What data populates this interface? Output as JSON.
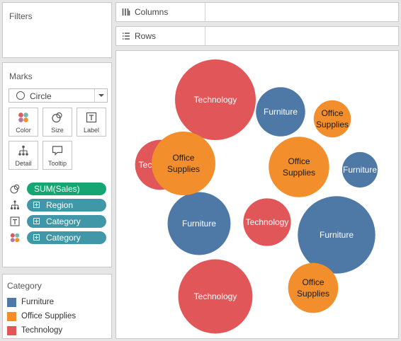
{
  "filters": {
    "title": "Filters"
  },
  "marks": {
    "title": "Marks",
    "mark_type": "Circle",
    "cards": [
      {
        "label": "Color",
        "icon": "color-dots-icon"
      },
      {
        "label": "Size",
        "icon": "size-circles-icon"
      },
      {
        "label": "Label",
        "icon": "text-label-icon"
      },
      {
        "label": "Detail",
        "icon": "detail-hierarchy-icon"
      },
      {
        "label": "Tooltip",
        "icon": "tooltip-speech-icon"
      }
    ],
    "pills": [
      {
        "field": "SUM(Sales)",
        "encoding": "size",
        "type": "measure"
      },
      {
        "field": "Region",
        "encoding": "detail",
        "type": "dimension"
      },
      {
        "field": "Category",
        "encoding": "label",
        "type": "dimension"
      },
      {
        "field": "Category",
        "encoding": "color",
        "type": "dimension"
      }
    ]
  },
  "shelves": {
    "columns": "Columns",
    "rows": "Rows"
  },
  "legend": {
    "title": "Category",
    "items": [
      {
        "label": "Furniture",
        "color": "#4e79a7"
      },
      {
        "label": "Office Supplies",
        "color": "#f28e2b"
      },
      {
        "label": "Technology",
        "color": "#e15759"
      }
    ]
  },
  "chart_data": {
    "type": "packed-bubble",
    "size_measure": "SUM(Sales)",
    "color_dimension": "Category",
    "detail_dimension": "Region",
    "label_dimension": "Category",
    "colors": {
      "Furniture": "#4e79a7",
      "Office Supplies": "#f28e2b",
      "Technology": "#e15759"
    },
    "bubbles": [
      {
        "label": "Technology",
        "category": "Technology",
        "relative_size": 1.0
      },
      {
        "label": "Technology",
        "category": "Technology",
        "relative_size": 0.92
      },
      {
        "label": "Furniture",
        "category": "Furniture",
        "relative_size": 0.96
      },
      {
        "label": "Technology",
        "category": "Technology",
        "relative_size": 0.62
      },
      {
        "label": "Furniture",
        "category": "Furniture",
        "relative_size": 0.78
      },
      {
        "label": "Office Supplies",
        "category": "Office Supplies",
        "relative_size": 0.79
      },
      {
        "label": "Office Supplies",
        "category": "Office Supplies",
        "relative_size": 0.75
      },
      {
        "label": "Technology",
        "category": "Technology",
        "relative_size": 0.59
      },
      {
        "label": "Furniture",
        "category": "Furniture",
        "relative_size": 0.61
      },
      {
        "label": "Office Supplies",
        "category": "Office Supplies",
        "relative_size": 0.62
      },
      {
        "label": "Furniture",
        "category": "Furniture",
        "relative_size": 0.44
      },
      {
        "label": "Office Supplies",
        "category": "Office Supplies",
        "relative_size": 0.46
      }
    ]
  }
}
